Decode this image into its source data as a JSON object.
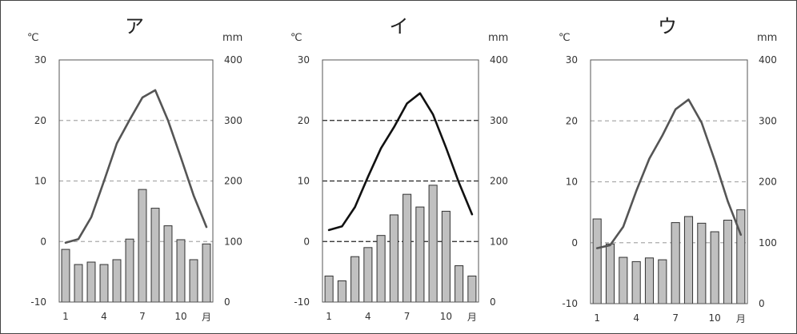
{
  "chart_data": [
    {
      "type": "bar+line",
      "title": "ア",
      "left_unit": "℃",
      "right_unit": "mm",
      "month_suffix": "月",
      "x": [
        1,
        2,
        3,
        4,
        5,
        6,
        7,
        8,
        9,
        10,
        11,
        12
      ],
      "x_tick_labels": [
        "1",
        "4",
        "7",
        "10"
      ],
      "temperature": [
        -0.2,
        0.4,
        4.0,
        10.0,
        16.2,
        20.1,
        23.8,
        25.0,
        20.0,
        13.9,
        7.6,
        2.4
      ],
      "precipitation": [
        87,
        62,
        66,
        62,
        70,
        104,
        186,
        155,
        126,
        103,
        70,
        96
      ],
      "left_ylim": [
        -10,
        30
      ],
      "left_ticks": [
        -10,
        0,
        10,
        20,
        30
      ],
      "right_ylim": [
        0,
        400
      ],
      "right_ticks": [
        0,
        100,
        200,
        300,
        400
      ],
      "colors": {
        "line": "#555555",
        "bar": "#c0c0c0",
        "bar_stroke": "#333333",
        "grid": "#aaaaaa"
      }
    },
    {
      "type": "bar+line",
      "title": "イ",
      "left_unit": "℃",
      "right_unit": "mm",
      "month_suffix": "月",
      "x": [
        1,
        2,
        3,
        4,
        5,
        6,
        7,
        8,
        9,
        10,
        11,
        12
      ],
      "x_tick_labels": [
        "1",
        "4",
        "7",
        "10"
      ],
      "temperature": [
        1.9,
        2.5,
        5.7,
        10.7,
        15.4,
        18.9,
        22.8,
        24.5,
        21.0,
        15.5,
        9.7,
        4.5
      ],
      "precipitation": [
        43,
        35,
        75,
        90,
        110,
        144,
        178,
        157,
        193,
        150,
        60,
        43
      ],
      "left_ylim": [
        -10,
        30
      ],
      "left_ticks": [
        -10,
        0,
        10,
        20,
        30
      ],
      "right_ylim": [
        0,
        400
      ],
      "right_ticks": [
        0,
        100,
        200,
        300,
        400
      ],
      "colors": {
        "line": "#111111",
        "bar": "#c0c0c0",
        "bar_stroke": "#333333",
        "grid": "#222222"
      }
    },
    {
      "type": "bar+line",
      "title": "ウ",
      "left_unit": "℃",
      "right_unit": "mm",
      "month_suffix": "月",
      "x": [
        1,
        2,
        3,
        4,
        5,
        6,
        7,
        8,
        9,
        10,
        11,
        12
      ],
      "x_tick_labels": [
        "1",
        "4",
        "7",
        "10"
      ],
      "temperature": [
        -0.9,
        -0.4,
        2.6,
        8.5,
        13.8,
        17.6,
        21.9,
        23.5,
        19.7,
        13.5,
        6.8,
        1.3
      ],
      "precipitation": [
        139,
        98,
        76,
        69,
        75,
        72,
        133,
        143,
        132,
        118,
        137,
        154
      ],
      "left_ylim": [
        -10,
        30
      ],
      "left_ticks": [
        -10,
        0,
        10,
        20,
        30
      ],
      "right_ylim": [
        0,
        400
      ],
      "right_ticks": [
        0,
        100,
        200,
        300,
        400
      ],
      "colors": {
        "line": "#555555",
        "bar": "#c0c0c0",
        "bar_stroke": "#333333",
        "grid": "#aaaaaa"
      }
    }
  ]
}
